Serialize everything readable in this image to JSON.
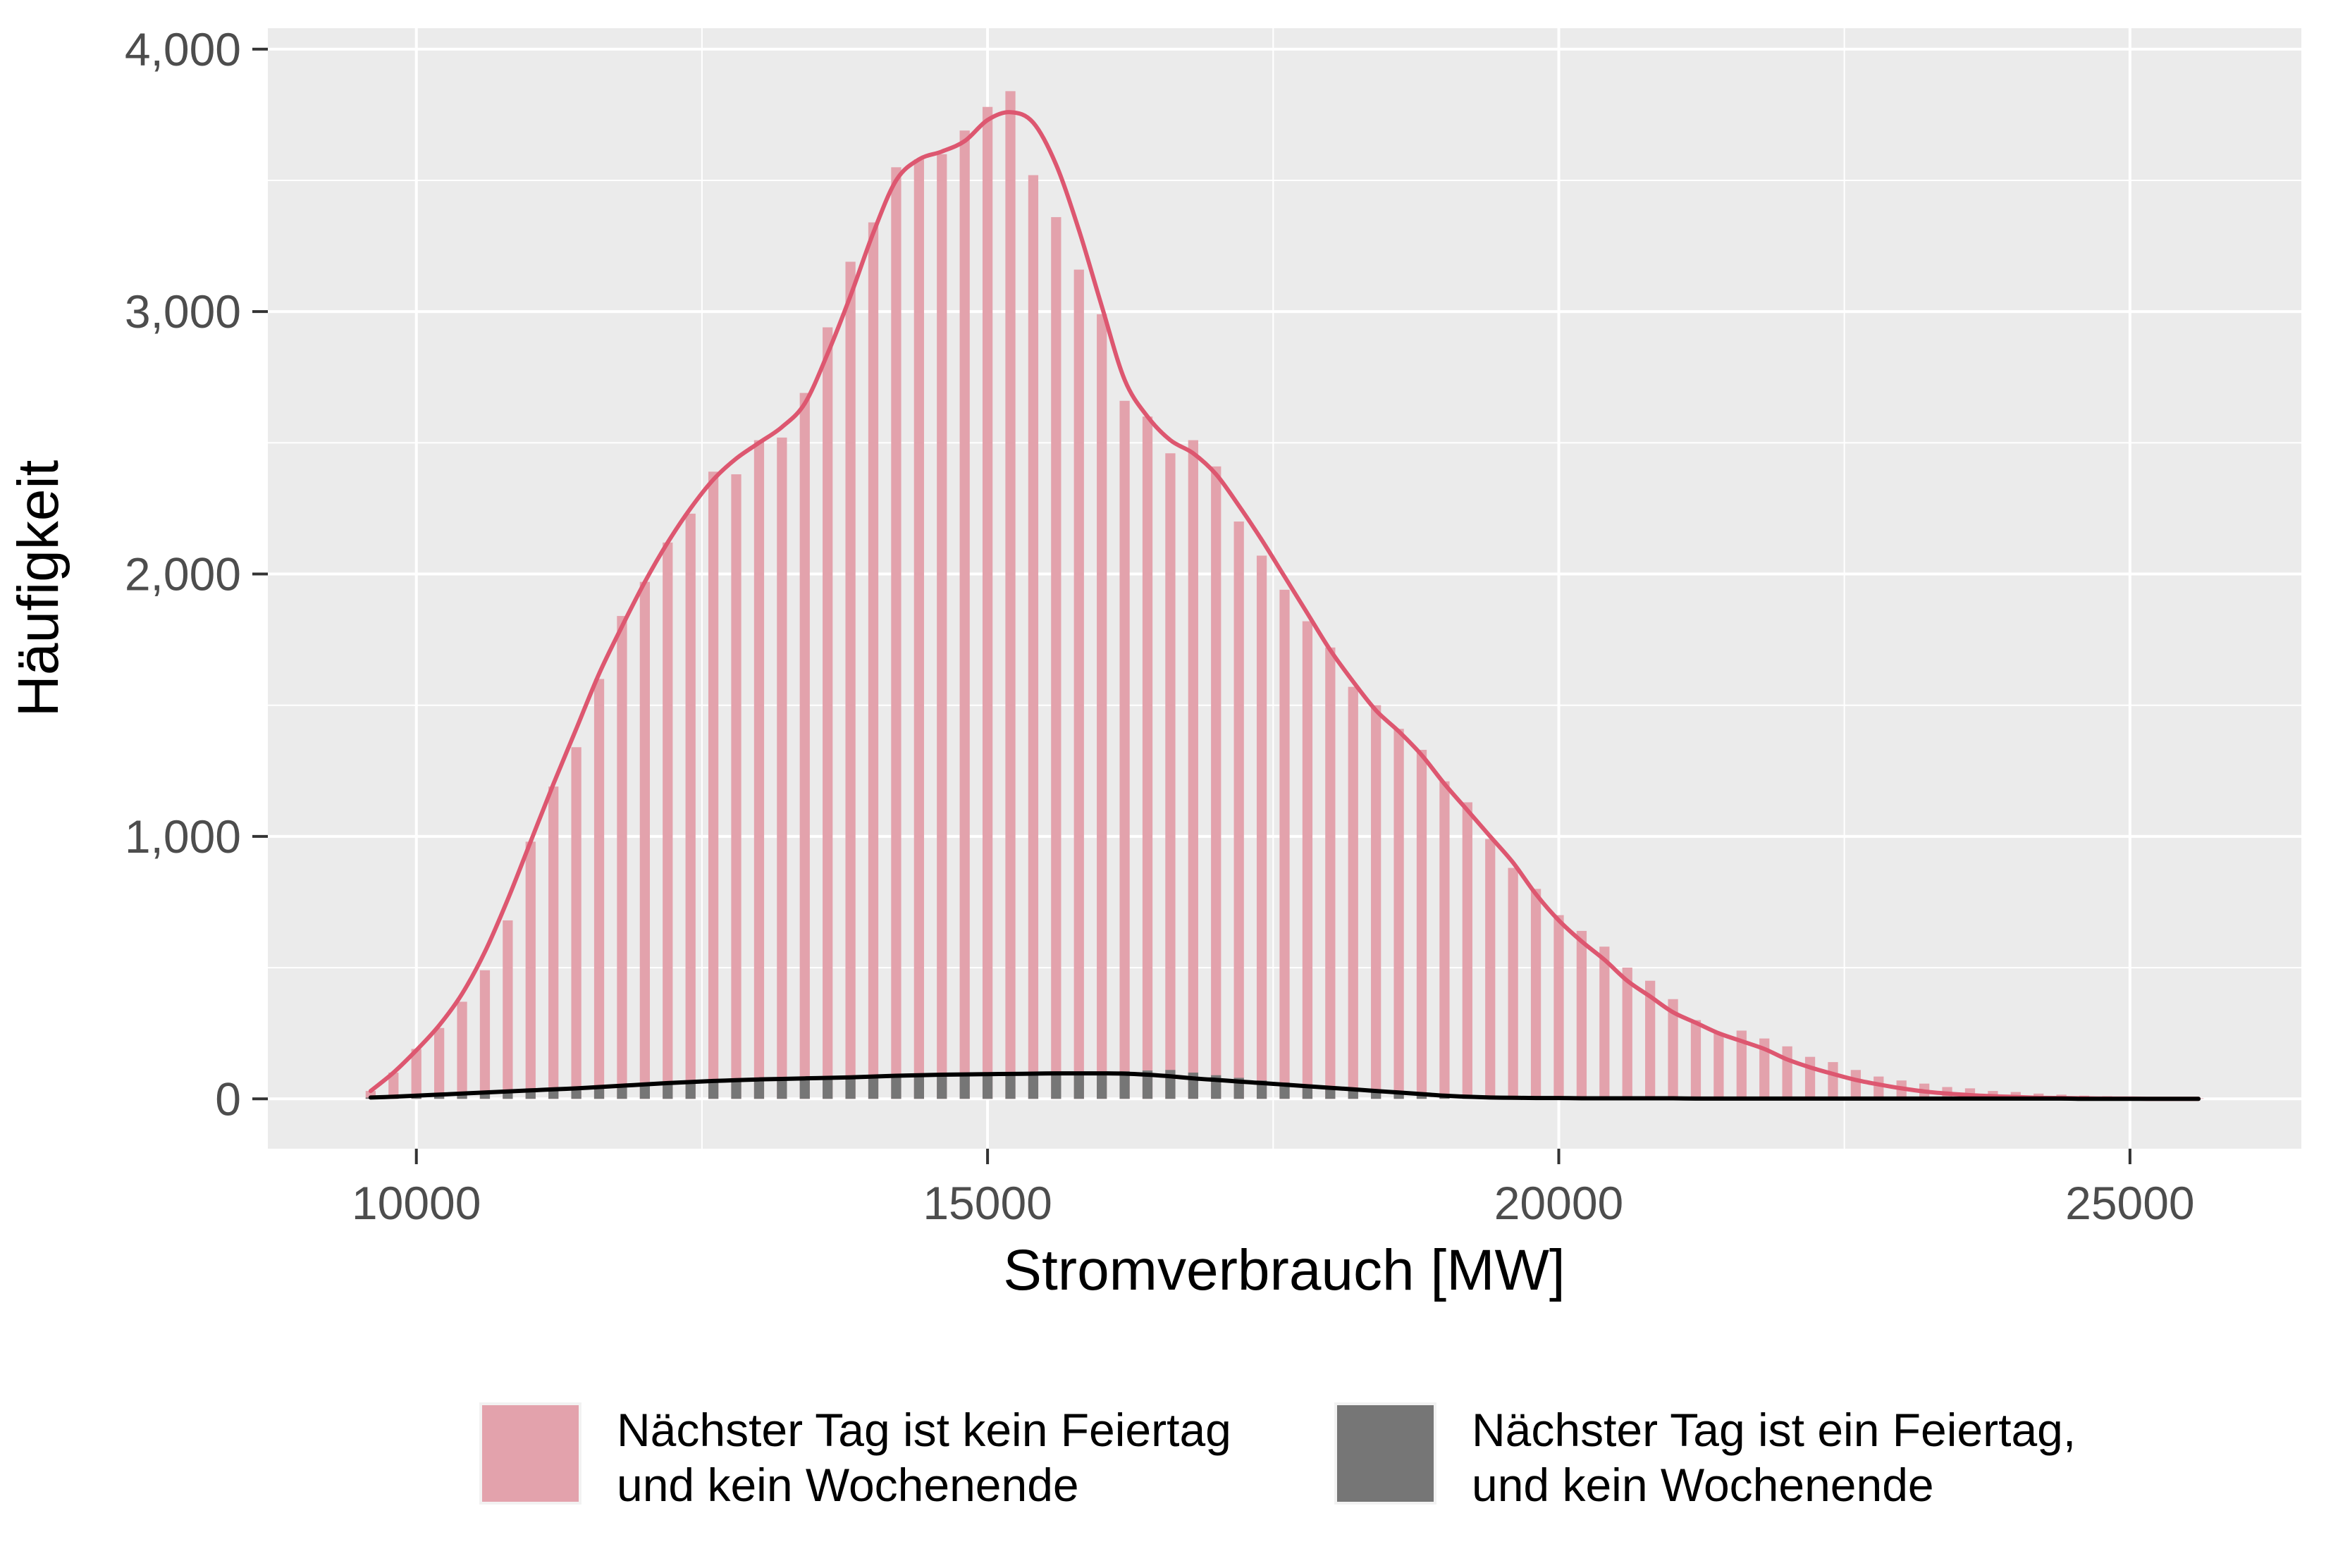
{
  "chart_data": {
    "type": "bar",
    "xlabel": "Stromverbrauch [MW]",
    "ylabel": "Häufigkeit",
    "xlim": [
      8700,
      26500
    ],
    "ylim": [
      -190,
      4080
    ],
    "x_ticks": [
      10000,
      15000,
      20000,
      25000
    ],
    "y_ticks": [
      0,
      1000,
      2000,
      3000,
      4000
    ],
    "x_tick_labels": [
      "10000",
      "15000",
      "20000",
      "25000"
    ],
    "y_tick_labels": [
      "0",
      "1,000",
      "2,000",
      "3,000",
      "4,000"
    ],
    "grid": true,
    "legend_position": "bottom",
    "bin_width": 200,
    "x": [
      9600,
      9800,
      10000,
      10200,
      10400,
      10600,
      10800,
      11000,
      11200,
      11400,
      11600,
      11800,
      12000,
      12200,
      12400,
      12600,
      12800,
      13000,
      13200,
      13400,
      13600,
      13800,
      14000,
      14200,
      14400,
      14600,
      14800,
      15000,
      15200,
      15400,
      15600,
      15800,
      16000,
      16200,
      16400,
      16600,
      16800,
      17000,
      17200,
      17400,
      17600,
      17800,
      18000,
      18200,
      18400,
      18600,
      18800,
      19000,
      19200,
      19400,
      19600,
      19800,
      20000,
      20200,
      20400,
      20600,
      20800,
      21000,
      21200,
      21400,
      21600,
      21800,
      22000,
      22200,
      22400,
      22600,
      22800,
      23000,
      23200,
      23400,
      23600,
      23800,
      24000,
      24200,
      24400,
      24600,
      24800,
      25000,
      25200,
      25400,
      25600
    ],
    "series": [
      {
        "name": "Nächster Tag ist kein Feiertag und kein Wochenende",
        "label_lines": [
          "Nächster Tag ist kein Feiertag",
          "und kein Wochenende"
        ],
        "color": "#e3a2ac",
        "curve_color": "#dd5770",
        "values": [
          30,
          100,
          190,
          270,
          370,
          490,
          680,
          980,
          1190,
          1340,
          1600,
          1840,
          1970,
          2120,
          2230,
          2390,
          2380,
          2510,
          2520,
          2690,
          2940,
          3190,
          3340,
          3550,
          3580,
          3600,
          3690,
          3780,
          3840,
          3520,
          3360,
          3160,
          2990,
          2660,
          2600,
          2460,
          2510,
          2410,
          2200,
          2070,
          1940,
          1820,
          1720,
          1570,
          1500,
          1410,
          1330,
          1210,
          1130,
          990,
          880,
          800,
          700,
          640,
          580,
          500,
          450,
          380,
          300,
          250,
          260,
          230,
          200,
          160,
          140,
          110,
          85,
          70,
          58,
          45,
          40,
          30,
          26,
          20,
          16,
          12,
          10,
          8,
          5,
          3,
          2
        ],
        "curve": [
          30,
          100,
          185,
          280,
          400,
          560,
          760,
          980,
          1200,
          1410,
          1620,
          1800,
          1970,
          2120,
          2250,
          2360,
          2440,
          2500,
          2560,
          2650,
          2840,
          3060,
          3300,
          3500,
          3580,
          3610,
          3650,
          3730,
          3760,
          3720,
          3560,
          3310,
          3020,
          2740,
          2600,
          2510,
          2460,
          2380,
          2260,
          2130,
          1990,
          1850,
          1710,
          1590,
          1480,
          1400,
          1310,
          1200,
          1100,
          1000,
          900,
          780,
          680,
          600,
          530,
          450,
          390,
          330,
          290,
          250,
          220,
          190,
          150,
          120,
          95,
          72,
          55,
          40,
          28,
          20,
          14,
          10,
          7,
          4,
          3,
          2,
          1,
          1,
          0,
          0,
          0
        ]
      },
      {
        "name": "Nächster Tag ist ein Feiertag, und kein Wochenende",
        "label_lines": [
          "Nächster Tag ist ein Feiertag,",
          "und kein Wochenende"
        ],
        "color": "#767676",
        "curve_color": "#000000",
        "values": [
          5,
          10,
          15,
          20,
          25,
          30,
          35,
          40,
          42,
          45,
          50,
          55,
          60,
          62,
          65,
          70,
          72,
          75,
          78,
          80,
          82,
          85,
          88,
          90,
          92,
          95,
          95,
          96,
          98,
          100,
          100,
          102,
          104,
          105,
          108,
          110,
          100,
          90,
          80,
          70,
          62,
          55,
          48,
          40,
          32,
          25,
          18,
          12,
          8,
          5,
          4,
          3,
          3,
          2,
          2,
          2,
          2,
          2,
          1,
          1,
          1,
          1,
          1,
          1,
          1,
          1,
          1,
          1,
          1,
          1,
          1,
          1,
          1,
          1,
          1,
          1,
          1,
          1,
          0,
          0,
          0
        ],
        "curve": [
          5,
          8,
          12,
          16,
          20,
          24,
          28,
          32,
          36,
          40,
          45,
          50,
          55,
          60,
          64,
          68,
          71,
          74,
          76,
          78,
          80,
          82,
          85,
          88,
          90,
          92,
          93,
          94,
          95,
          96,
          97,
          97,
          97,
          96,
          92,
          86,
          78,
          72,
          66,
          60,
          54,
          48,
          42,
          36,
          30,
          24,
          18,
          12,
          8,
          5,
          4,
          3,
          3,
          2,
          2,
          2,
          2,
          2,
          1,
          1,
          1,
          1,
          1,
          1,
          1,
          1,
          1,
          1,
          1,
          1,
          1,
          1,
          1,
          1,
          1,
          0,
          0,
          0,
          0,
          0,
          0
        ]
      }
    ]
  }
}
